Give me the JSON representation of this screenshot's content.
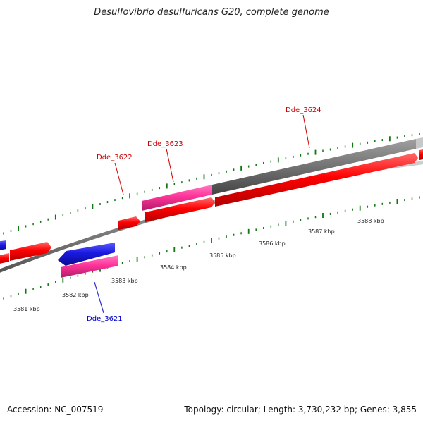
{
  "title": "Desulfovibrio desulfuricans G20, complete genome",
  "footer": {
    "accession": "Accession: NC_007519",
    "stats": "Topology: circular; Length: 3,730,232 bp; Genes: 3,855"
  },
  "colors": {
    "cds_forward": "#ff0000",
    "cds_reverse": "#1a1adf",
    "rna": "#ff3399",
    "pseudo": "#777777",
    "label_forward": "#cc0000",
    "label_reverse": "#0000cc",
    "tick": "#117711"
  },
  "kbp_labels": [
    "3581 kbp",
    "3582 kbp",
    "3583 kbp",
    "3584 kbp",
    "3585 kbp",
    "3586 kbp",
    "3587 kbp",
    "3588 kbp"
  ],
  "genes": [
    {
      "name": "Dde_3621",
      "strand": "reverse"
    },
    {
      "name": "Dde_3622",
      "strand": "forward"
    },
    {
      "name": "Dde_3623",
      "strand": "forward"
    },
    {
      "name": "Dde_3624",
      "strand": "forward"
    }
  ]
}
